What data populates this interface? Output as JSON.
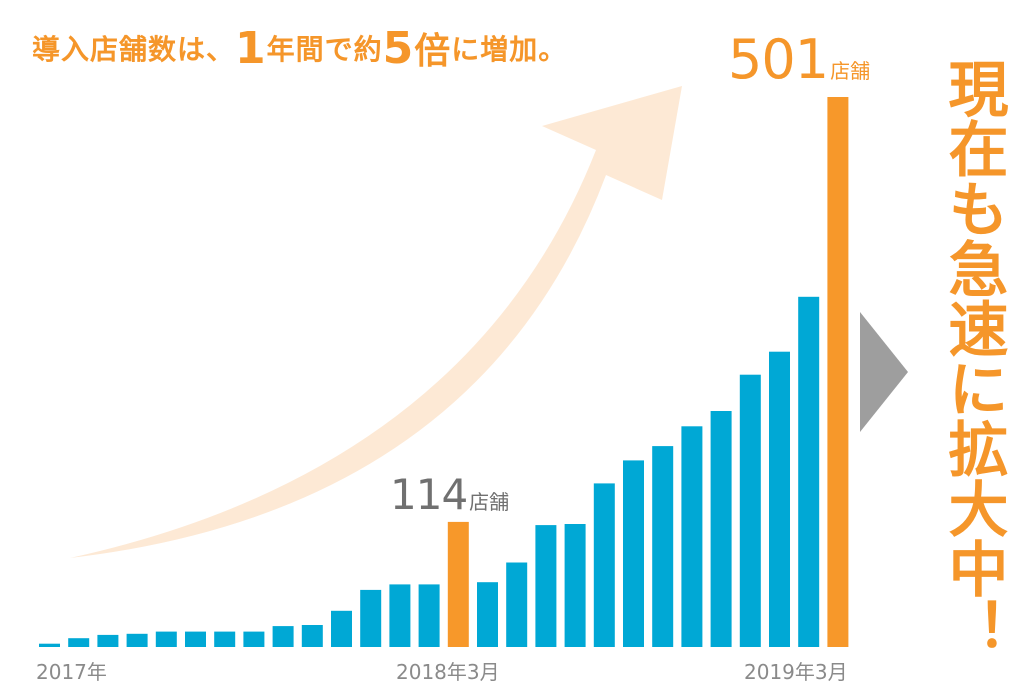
{
  "headline": {
    "part1": "導入店舗数は、",
    "part2": "1",
    "part3": "年間で約",
    "part4": "5",
    "part5": "倍",
    "part6": "に増加。"
  },
  "side_message": "現在も急速に拡大中！",
  "callouts": [
    {
      "value": "501",
      "unit": "店舗"
    },
    {
      "value": "114",
      "unit": "店舗"
    }
  ],
  "colors": {
    "bar": "#00a8d5",
    "highlight_bar": "#f7982a",
    "text_accent": "#f5962a",
    "arrow": "#fde9d5",
    "triangle": "#9e9e9e"
  },
  "icons": [
    "growth-arrow-icon",
    "triangle-right-icon"
  ],
  "chart_data": {
    "type": "bar",
    "x_labels": [
      "2017年",
      "2018年3月",
      "2019年3月"
    ],
    "values": [
      3,
      8,
      11,
      12,
      14,
      14,
      14,
      14,
      19,
      20,
      33,
      52,
      57,
      57,
      114,
      59,
      77,
      111,
      112,
      149,
      170,
      183,
      201,
      215,
      248,
      269,
      319,
      501
    ],
    "highlight_indices": [
      14,
      27
    ],
    "ylim": [
      0,
      501
    ],
    "grid": false,
    "legend": "none"
  }
}
